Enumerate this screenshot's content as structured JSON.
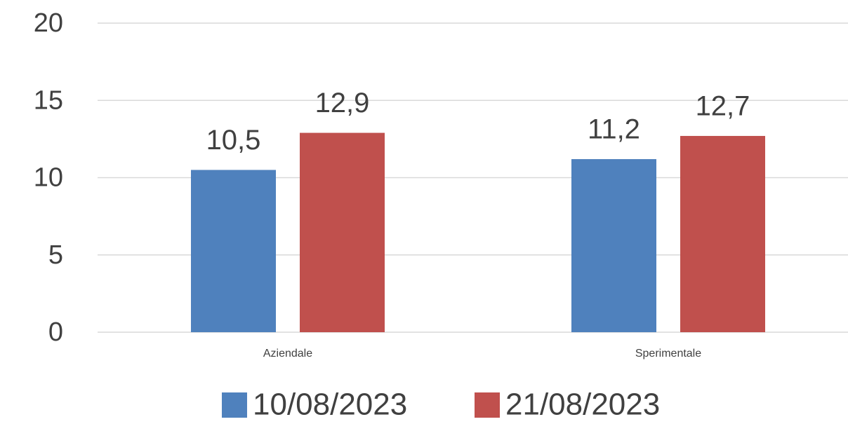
{
  "chart_data": {
    "type": "bar",
    "categories": [
      "Aziendale",
      "Sperimentale"
    ],
    "series": [
      {
        "name": "10/08/2023",
        "color": "#4f81bd",
        "values": [
          10.5,
          11.2
        ],
        "value_labels": [
          "10,5",
          "11,2"
        ]
      },
      {
        "name": "21/08/2023",
        "color": "#c0504d",
        "values": [
          12.9,
          12.7
        ],
        "value_labels": [
          "12,9",
          "12,7"
        ]
      }
    ],
    "ylim": [
      0,
      20
    ],
    "yticks": [
      0,
      5,
      10,
      15,
      20
    ],
    "grid": true,
    "legend": "bottom"
  }
}
